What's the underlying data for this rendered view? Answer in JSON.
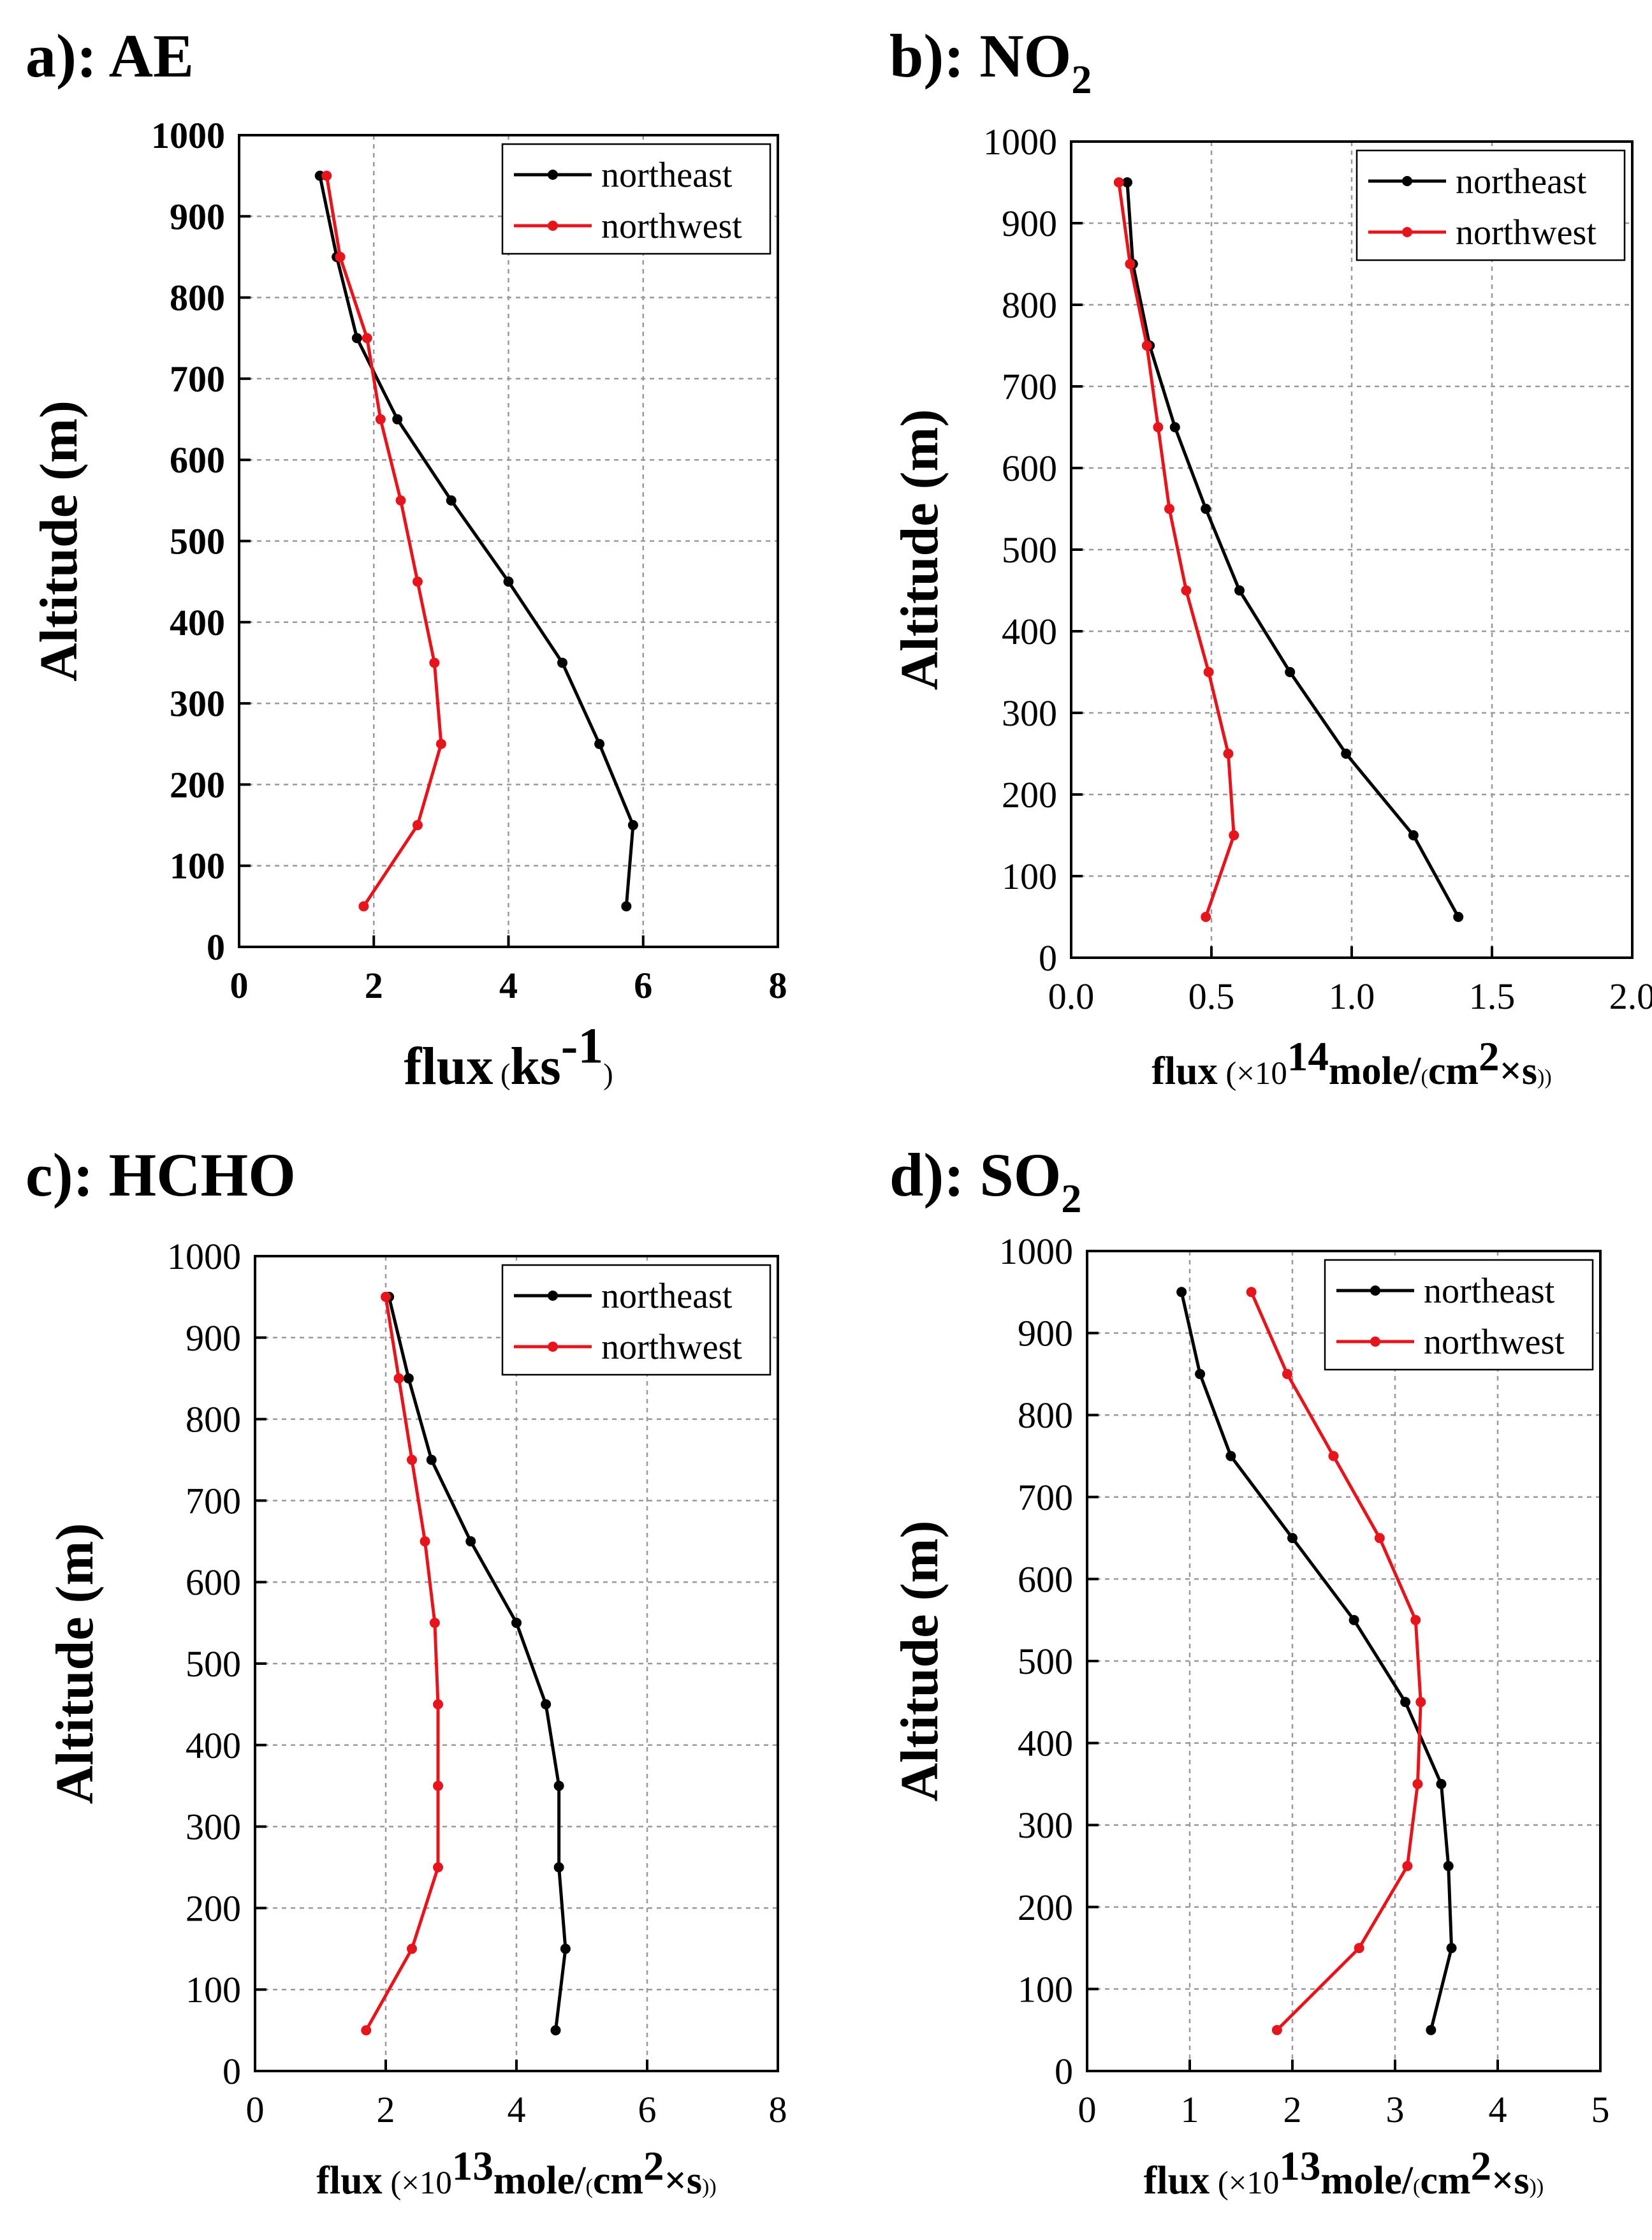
{
  "chart_data": [
    {
      "type": "line",
      "panel_title": {
        "pre": "a): AE",
        "sub": ""
      },
      "xlabel": {
        "main": "flux",
        "open": " (",
        "unit": "ks",
        "sup": "-1",
        "close": ")"
      },
      "ylabel": "Altitude (m)",
      "xlim": [
        0,
        8
      ],
      "ylim": [
        0,
        1000
      ],
      "xticks": [
        "0",
        "2",
        "4",
        "6",
        "8"
      ],
      "yticks": [
        "0",
        "100",
        "200",
        "300",
        "400",
        "500",
        "600",
        "700",
        "800",
        "900",
        "1000"
      ],
      "grid": true,
      "legend_position": "top-right",
      "series": [
        {
          "name": "northeast",
          "color": "#000000",
          "x": [
            5.75,
            5.85,
            5.35,
            4.8,
            4.0,
            3.15,
            2.35,
            1.75,
            1.45,
            1.2
          ],
          "y": [
            50,
            150,
            250,
            350,
            450,
            550,
            650,
            750,
            850,
            950
          ]
        },
        {
          "name": "northwest",
          "color": "#e8141b",
          "x": [
            1.85,
            2.65,
            3.0,
            2.9,
            2.65,
            2.4,
            2.1,
            1.9,
            1.5,
            1.3
          ],
          "y": [
            50,
            150,
            250,
            350,
            450,
            550,
            650,
            750,
            850,
            950
          ]
        }
      ]
    },
    {
      "type": "line",
      "panel_title": {
        "pre": "b): NO",
        "sub": "2"
      },
      "xlabel": {
        "main": "flux",
        "open": " (×10",
        "exp": "14",
        "mid": "mole/",
        "small": "(",
        "unit": "cm",
        "sup": "2",
        "tail": "×s",
        "close": "))"
      },
      "ylabel": "Altitude (m)",
      "xlim": [
        0,
        2
      ],
      "ylim": [
        0,
        1000
      ],
      "xticks": [
        "0.0",
        "0.5",
        "1.0",
        "1.5",
        "2.0"
      ],
      "yticks": [
        "0",
        "100",
        "200",
        "300",
        "400",
        "500",
        "600",
        "700",
        "800",
        "900",
        "1000"
      ],
      "grid": true,
      "legend_position": "top-right",
      "series": [
        {
          "name": "northeast",
          "color": "#000000",
          "x": [
            1.38,
            1.22,
            0.98,
            0.78,
            0.6,
            0.48,
            0.37,
            0.28,
            0.22,
            0.2
          ],
          "y": [
            50,
            150,
            250,
            350,
            450,
            550,
            650,
            750,
            850,
            950
          ]
        },
        {
          "name": "northwest",
          "color": "#e8141b",
          "x": [
            0.48,
            0.58,
            0.56,
            0.49,
            0.41,
            0.35,
            0.31,
            0.27,
            0.21,
            0.17
          ],
          "y": [
            50,
            150,
            250,
            350,
            450,
            550,
            650,
            750,
            850,
            950
          ]
        }
      ]
    },
    {
      "type": "line",
      "panel_title": {
        "pre": "c): HCHO",
        "sub": ""
      },
      "xlabel": {
        "main": "flux",
        "open": " (×10",
        "exp": "13",
        "mid": "mole/",
        "small": "(",
        "unit": "cm",
        "sup": "2",
        "tail": "×s",
        "close": "))"
      },
      "ylabel": "Altitude (m)",
      "xlim": [
        0,
        8
      ],
      "ylim": [
        0,
        1000
      ],
      "xticks": [
        "0",
        "2",
        "4",
        "6",
        "8"
      ],
      "yticks": [
        "0",
        "100",
        "200",
        "300",
        "400",
        "500",
        "600",
        "700",
        "800",
        "900",
        "1000"
      ],
      "grid": true,
      "legend_position": "top-right",
      "series": [
        {
          "name": "northeast",
          "color": "#000000",
          "x": [
            4.6,
            4.75,
            4.65,
            4.65,
            4.45,
            4.0,
            3.3,
            2.7,
            2.35,
            2.05
          ],
          "y": [
            50,
            150,
            250,
            350,
            450,
            550,
            650,
            750,
            850,
            950
          ]
        },
        {
          "name": "northwest",
          "color": "#e8141b",
          "x": [
            1.7,
            2.4,
            2.8,
            2.8,
            2.8,
            2.75,
            2.6,
            2.4,
            2.2,
            2.0
          ],
          "y": [
            50,
            150,
            250,
            350,
            450,
            550,
            650,
            750,
            850,
            950
          ]
        }
      ]
    },
    {
      "type": "line",
      "panel_title": {
        "pre": "d): SO",
        "sub": "2"
      },
      "xlabel": {
        "main": "flux",
        "open": " (×10",
        "exp": "13",
        "mid": "mole/",
        "small": "(",
        "unit": "cm",
        "sup": "2",
        "tail": "×s",
        "close": "))"
      },
      "ylabel": "Altitude (m)",
      "xlim": [
        0,
        5
      ],
      "ylim": [
        0,
        1000
      ],
      "xticks": [
        "0",
        "1",
        "2",
        "3",
        "4",
        "5"
      ],
      "yticks": [
        "0",
        "100",
        "200",
        "300",
        "400",
        "500",
        "600",
        "700",
        "800",
        "900",
        "1000"
      ],
      "grid": true,
      "legend_position": "top-right",
      "series": [
        {
          "name": "northeast",
          "color": "#000000",
          "x": [
            3.35,
            3.55,
            3.52,
            3.45,
            3.1,
            2.6,
            2.0,
            1.4,
            1.1,
            0.92
          ],
          "y": [
            50,
            150,
            250,
            350,
            450,
            550,
            650,
            750,
            850,
            950
          ]
        },
        {
          "name": "northwest",
          "color": "#e8141b",
          "x": [
            1.85,
            2.65,
            3.12,
            3.22,
            3.25,
            3.2,
            2.85,
            2.4,
            1.95,
            1.6
          ],
          "y": [
            50,
            150,
            250,
            350,
            450,
            550,
            650,
            750,
            850,
            950
          ]
        }
      ]
    }
  ]
}
